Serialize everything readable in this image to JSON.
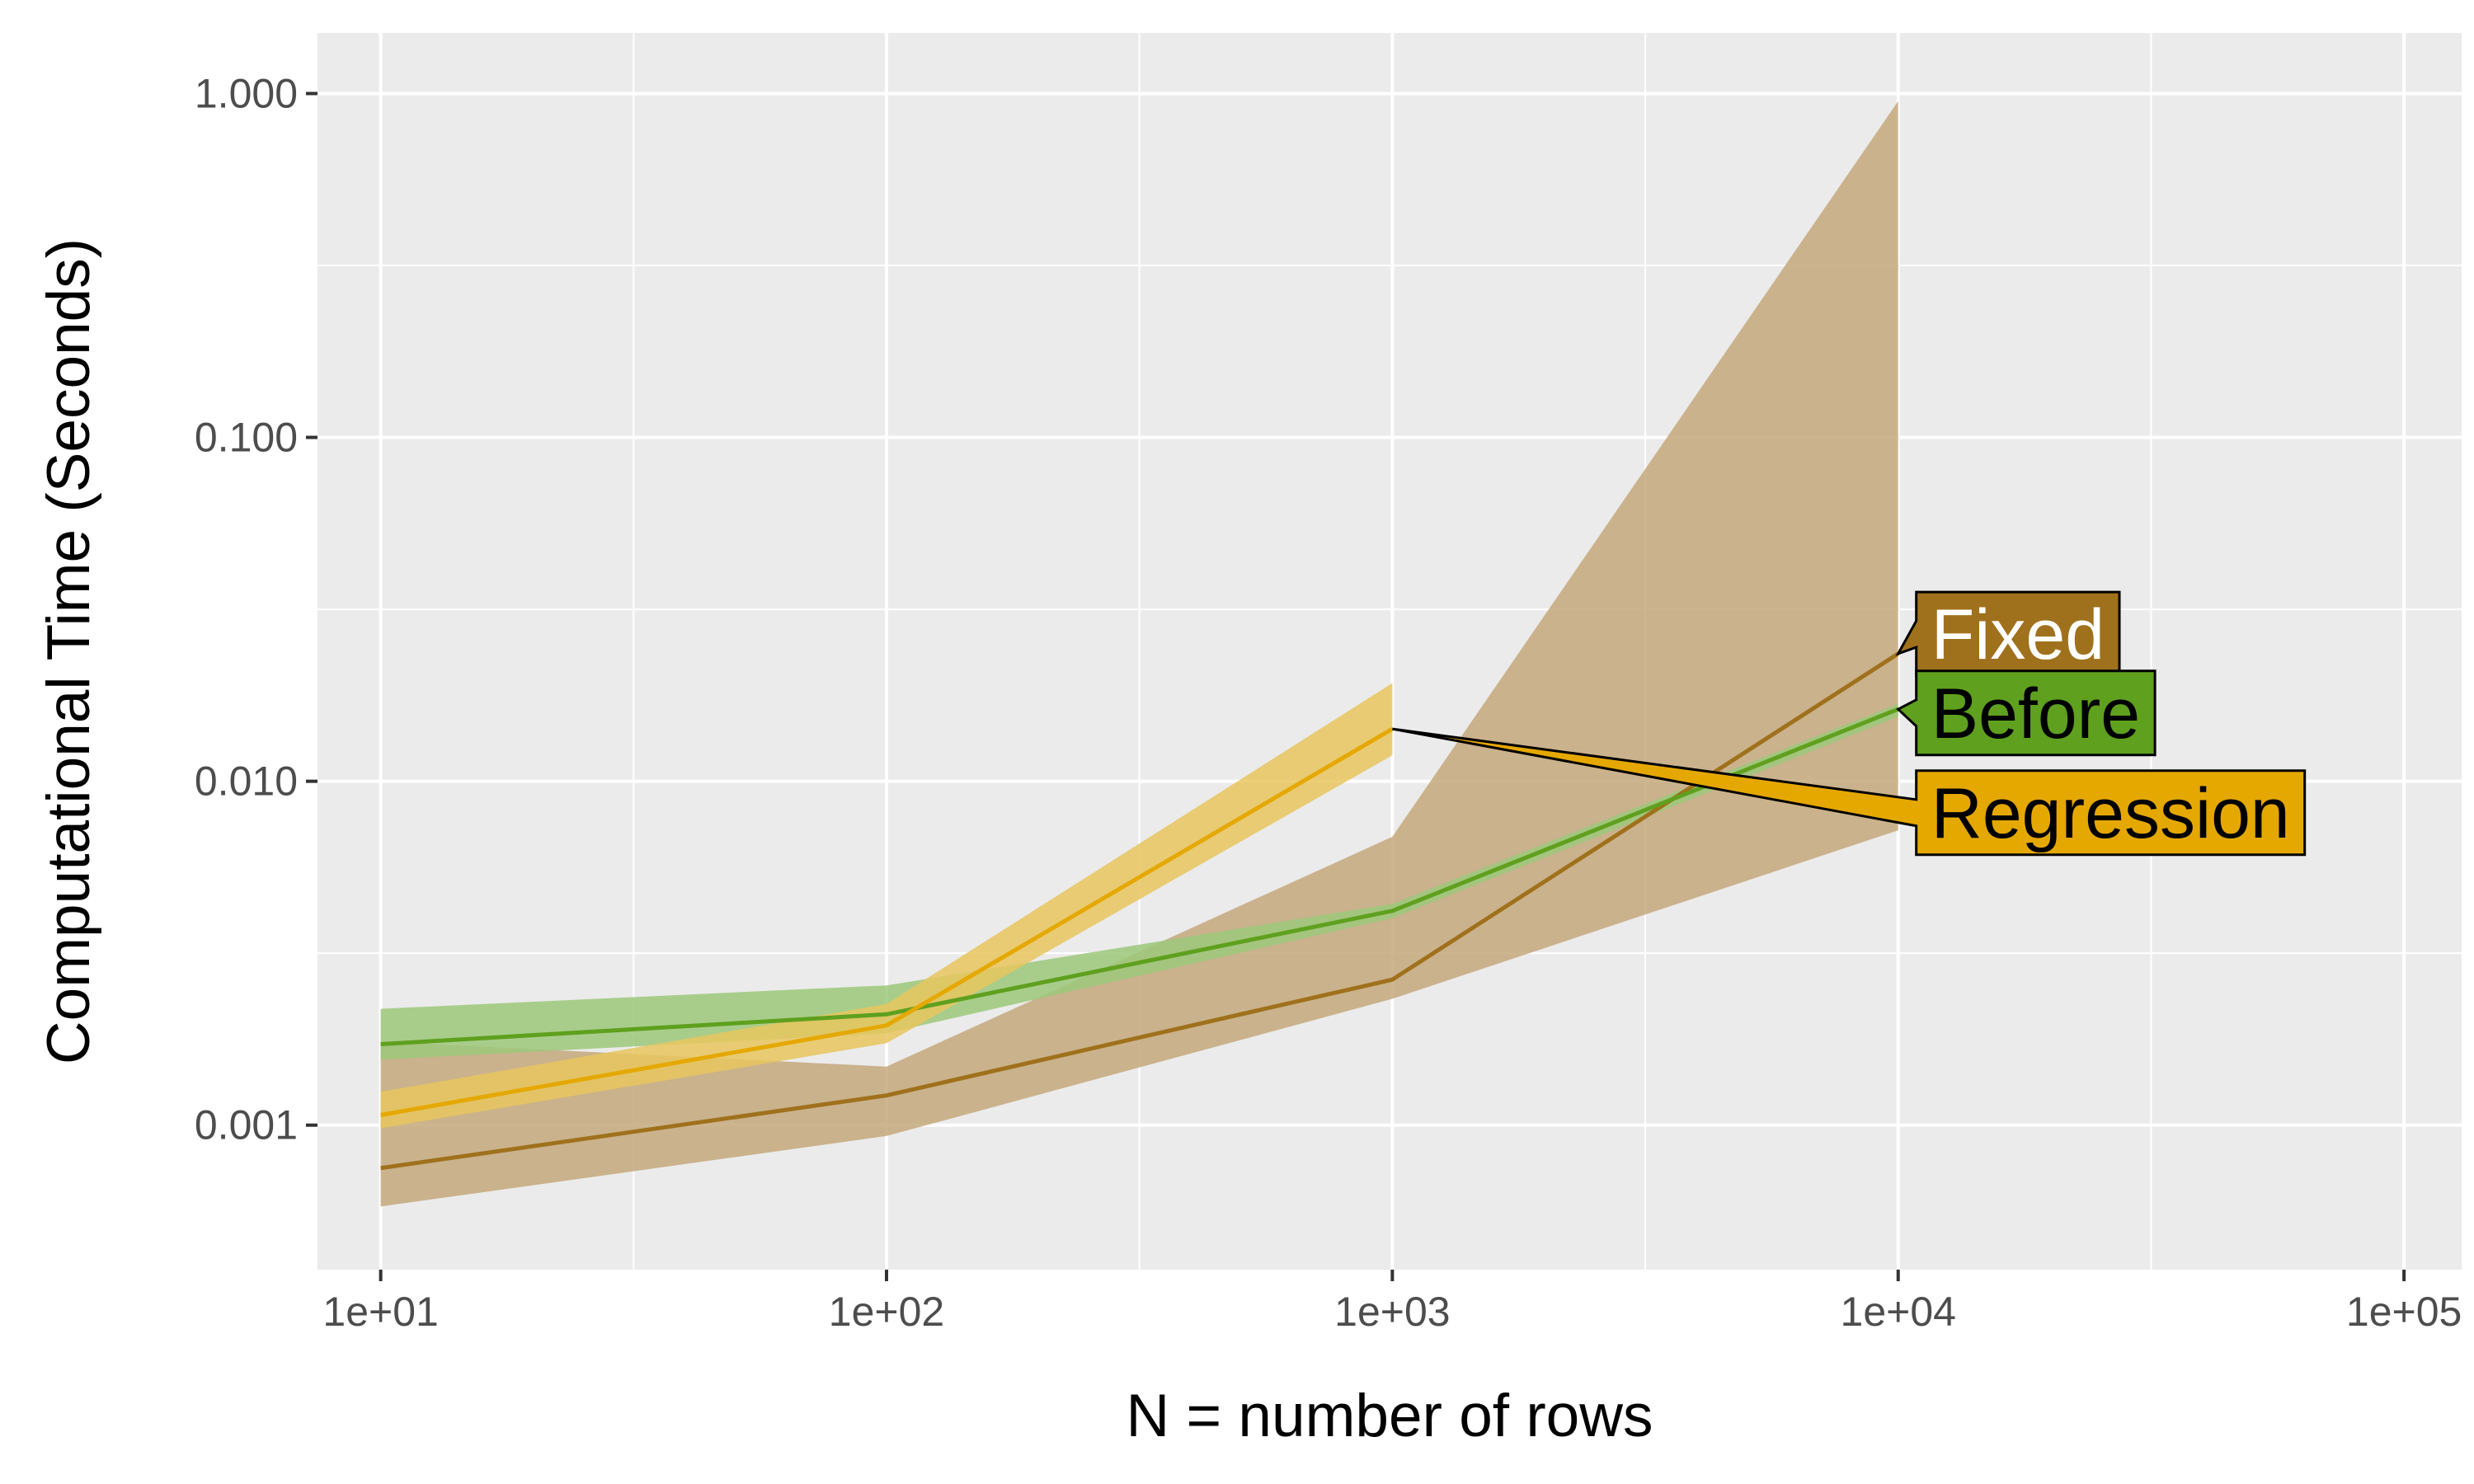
{
  "chart_data": {
    "type": "line",
    "title": "",
    "xlabel": "N = number of rows",
    "ylabel": "Computational Time (Seconds)",
    "x_scale": "log10",
    "y_scale": "log10",
    "xlim": [
      7.5,
      130000
    ],
    "ylim": [
      0.00038,
      1.5
    ],
    "x_ticks": [
      10,
      100,
      1000,
      10000,
      100000
    ],
    "x_tick_labels": [
      "1e+01",
      "1e+02",
      "1e+03",
      "1e+04",
      "1e+05"
    ],
    "y_ticks": [
      0.001,
      0.01,
      0.1,
      1
    ],
    "y_tick_labels": [
      "0.001",
      "0.010",
      "0.100",
      "1.000"
    ],
    "grid": true,
    "legend": "direct labels at line ends",
    "series": [
      {
        "name": "Fixed",
        "color": "#A0711C",
        "fill": "#C4A87B",
        "label_text_color": "#ffffff",
        "x": [
          10,
          100,
          1000,
          10000
        ],
        "median": [
          0.00075,
          0.00122,
          0.00265,
          0.0235
        ],
        "lower": [
          0.00058,
          0.00093,
          0.00233,
          0.0072
        ],
        "upper": [
          0.00175,
          0.00148,
          0.0069,
          0.95
        ]
      },
      {
        "name": "Before",
        "color": "#5FA01E",
        "fill": "#9CC87A",
        "label_text_color": "#000000",
        "x": [
          10,
          100,
          1000,
          10000
        ],
        "median": [
          0.00172,
          0.0021,
          0.0042,
          0.0162
        ],
        "lower": [
          0.00155,
          0.00185,
          0.004,
          0.0154
        ],
        "upper": [
          0.00218,
          0.00255,
          0.0044,
          0.0168
        ]
      },
      {
        "name": "Regression",
        "color": "#E5A800",
        "fill": "#E8C65E",
        "label_text_color": "#000000",
        "x": [
          10,
          100,
          1000
        ],
        "median": [
          0.00107,
          0.00195,
          0.0142
        ],
        "lower": [
          0.00098,
          0.00173,
          0.0119
        ],
        "upper": [
          0.00125,
          0.00225,
          0.0193
        ]
      }
    ]
  }
}
